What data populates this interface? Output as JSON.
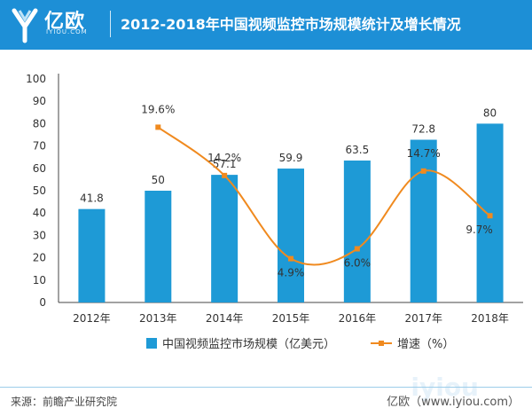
{
  "header": {
    "logo_text": "亿欧",
    "logo_sub": "IYIOU.COM",
    "title": "2012-2018年中国视频监控市场规模统计及增长情况"
  },
  "colors": {
    "header": "#1d8fd6",
    "bar": "#1e9ad6",
    "line": "#f08a1f"
  },
  "chart_data": {
    "type": "bar",
    "title": "2012-2018年中国视频监控市场规模统计及增长情况",
    "categories": [
      "2012年",
      "2013年",
      "2014年",
      "2015年",
      "2016年",
      "2017年",
      "2018年"
    ],
    "series": [
      {
        "name": "中国视频监控市场规模（亿美元）",
        "type": "bar",
        "values": [
          41.8,
          50,
          57.1,
          59.9,
          63.5,
          72.8,
          80
        ],
        "labels": [
          "41.8",
          "50",
          "57.1",
          "59.9",
          "63.5",
          "72.8",
          "80"
        ]
      },
      {
        "name": "增速（%）",
        "type": "line",
        "values": [
          null,
          19.6,
          14.2,
          4.9,
          6.0,
          14.7,
          9.7
        ],
        "labels": [
          "",
          "19.6%",
          "14.2%",
          "4.9%",
          "6.0%",
          "14.7%",
          "9.7%"
        ]
      }
    ],
    "y_ticks": [
      "0",
      "10",
      "20",
      "30",
      "40",
      "50",
      "60",
      "70",
      "80",
      "90",
      "100"
    ],
    "ylim": [
      0,
      100
    ],
    "line_ylim": [
      0,
      25
    ],
    "legend_position": "bottom"
  },
  "footer": {
    "source": "来源：前瞻产业研究院",
    "brand": "亿欧（www.iyiou.com）",
    "watermark": "iyiou"
  }
}
